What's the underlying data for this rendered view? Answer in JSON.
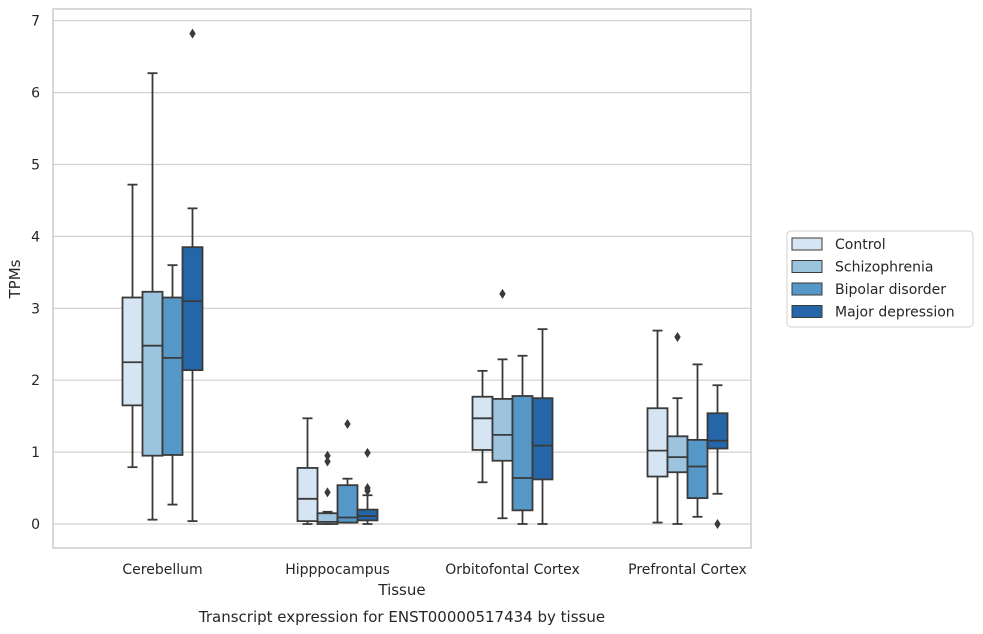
{
  "chart_data": {
    "type": "box",
    "title": "",
    "caption": "Transcript expression for ENST00000517434 by tissue",
    "xlabel": "Tissue",
    "ylabel": "TPMs",
    "ylim": [
      -0.33,
      7.15
    ],
    "yticks": [
      0,
      1,
      2,
      3,
      4,
      5,
      6,
      7
    ],
    "grid": "horizontal",
    "legend_position": "right",
    "categories": [
      "Cerebellum",
      "Hipppocampus",
      "Orbitofontal Cortex",
      "Prefrontal Cortex"
    ],
    "series": [
      {
        "name": "Control",
        "color": "#d6e5f3",
        "boxes": [
          {
            "whislo": 0.79,
            "q1": 1.65,
            "med": 2.25,
            "q3": 3.15,
            "whishi": 4.72,
            "fliers": []
          },
          {
            "whislo": 0.0,
            "q1": 0.04,
            "med": 0.35,
            "q3": 0.78,
            "whishi": 1.47,
            "fliers": []
          },
          {
            "whislo": 0.58,
            "q1": 1.03,
            "med": 1.47,
            "q3": 1.77,
            "whishi": 2.13,
            "fliers": []
          },
          {
            "whislo": 0.02,
            "q1": 0.66,
            "med": 1.02,
            "q3": 1.61,
            "whishi": 2.69,
            "fliers": []
          }
        ]
      },
      {
        "name": "Schizophrenia",
        "color": "#9cc4df",
        "boxes": [
          {
            "whislo": 0.06,
            "q1": 0.95,
            "med": 2.48,
            "q3": 3.23,
            "whishi": 6.27,
            "fliers": []
          },
          {
            "whislo": 0.0,
            "q1": 0.0,
            "med": 0.03,
            "q3": 0.15,
            "whishi": 0.17,
            "fliers": [
              0.44,
              0.87,
              0.95
            ]
          },
          {
            "whislo": 0.08,
            "q1": 0.88,
            "med": 1.24,
            "q3": 1.74,
            "whishi": 2.29,
            "fliers": [
              3.2
            ]
          },
          {
            "whislo": 0.0,
            "q1": 0.72,
            "med": 0.93,
            "q3": 1.22,
            "whishi": 1.75,
            "fliers": [
              2.6
            ]
          }
        ]
      },
      {
        "name": "Bipolar disorder",
        "color": "#5598c7",
        "boxes": [
          {
            "whislo": 0.27,
            "q1": 0.96,
            "med": 2.31,
            "q3": 3.15,
            "whishi": 3.6,
            "fliers": []
          },
          {
            "whislo": 0.02,
            "q1": 0.02,
            "med": 0.09,
            "q3": 0.54,
            "whishi": 0.63,
            "fliers": [
              1.39
            ]
          },
          {
            "whislo": 0.0,
            "q1": 0.19,
            "med": 0.64,
            "q3": 1.78,
            "whishi": 2.34,
            "fliers": []
          },
          {
            "whislo": 0.1,
            "q1": 0.36,
            "med": 0.8,
            "q3": 1.17,
            "whishi": 2.22,
            "fliers": []
          }
        ]
      },
      {
        "name": "Major depression",
        "color": "#2566a8",
        "boxes": [
          {
            "whislo": 0.04,
            "q1": 2.14,
            "med": 3.1,
            "q3": 3.85,
            "whishi": 4.39,
            "fliers": [
              6.82
            ]
          },
          {
            "whislo": 0.0,
            "q1": 0.05,
            "med": 0.11,
            "q3": 0.2,
            "whishi": 0.4,
            "fliers": [
              0.46,
              0.5,
              0.99
            ]
          },
          {
            "whislo": 0.0,
            "q1": 0.62,
            "med": 1.09,
            "q3": 1.75,
            "whishi": 2.71,
            "fliers": []
          },
          {
            "whislo": 0.42,
            "q1": 1.05,
            "med": 1.16,
            "q3": 1.54,
            "whishi": 1.93,
            "fliers": [
              0.0
            ]
          }
        ]
      }
    ]
  }
}
